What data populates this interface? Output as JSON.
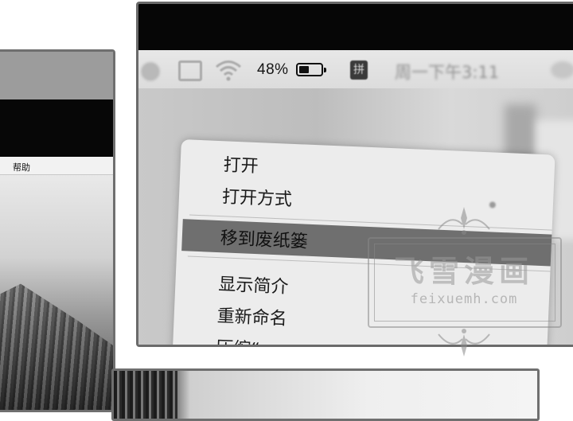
{
  "left_window": {
    "menu_help": "帮助"
  },
  "status_bar": {
    "battery_percent": "48%",
    "battery_level": 0.48,
    "ime_glyph": "拼",
    "clock": "周一下午3:11",
    "icons": [
      "screen-mirror-icon",
      "display-icon",
      "wifi-icon",
      "battery-icon",
      "input-method-icon"
    ]
  },
  "context_menu": {
    "items": [
      {
        "label": "打开",
        "highlighted": false
      },
      {
        "label": "打开方式",
        "highlighted": false,
        "has_submenu": true
      },
      {
        "label": "移到废纸篓",
        "highlighted": true
      },
      {
        "label": "显示简介",
        "highlighted": false
      },
      {
        "label": "重新命名",
        "highlighted": false
      },
      {
        "label": "压缩“",
        "highlighted": false
      }
    ]
  },
  "watermark": {
    "title": "飞雪漫画",
    "url": "feixuemh.com"
  },
  "colors": {
    "menu_background": "#ececec",
    "highlight": "#6f6f6f",
    "frame": "#6a6a6a"
  }
}
